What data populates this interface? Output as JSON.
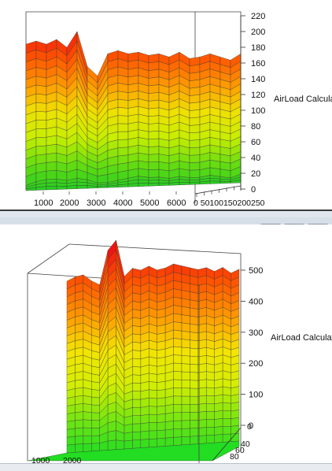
{
  "window_controls": {
    "minimize_icon": "minimize-icon",
    "restore_icon": "restore-icon",
    "close_icon": "close-icon"
  },
  "chart_data": [
    {
      "type": "surface",
      "zlabel": "AirLoad Calculated",
      "zlim": [
        0,
        220
      ],
      "z_ticks": [
        "0",
        "20",
        "40",
        "60",
        "80",
        "100",
        "120",
        "140",
        "160",
        "180",
        "200",
        "220"
      ],
      "x_ticks": [
        "1000",
        "2000",
        "3000",
        "4000",
        "5000",
        "6000"
      ],
      "y_ticks": [
        "0",
        "50",
        "100",
        "150",
        "200",
        "250"
      ],
      "y_tick_text": "0 50100150200250",
      "colormap": [
        "#22cc22",
        "#66dd11",
        "#c8ee00",
        "#f0e000",
        "#ff9900",
        "#ff5500",
        "#ee1111"
      ],
      "surface_heights": [
        0.92,
        0.94,
        0.92,
        0.95,
        0.9,
        1.0,
        0.78,
        0.72,
        0.86,
        0.88,
        0.86,
        0.87,
        0.85,
        0.86,
        0.84,
        0.87,
        0.83,
        0.84,
        0.86,
        0.84,
        0.82,
        0.86
      ],
      "knee_heights": [
        0.03,
        0.05,
        0.06,
        0.06,
        0.05,
        0.06,
        0.05,
        0.03,
        0.03,
        0.04,
        0.05,
        0.06,
        0.05,
        0.05,
        0.04,
        0.05,
        0.04,
        0.04,
        0.05,
        0.04,
        0.03,
        0.05
      ]
    },
    {
      "type": "surface",
      "zlabel": "AirLoad Calculated",
      "zlim": [
        0,
        500
      ],
      "z_ticks": [
        "0",
        "100",
        "200",
        "300",
        "400",
        "500"
      ],
      "x_ticks": [
        "1000",
        "2000"
      ],
      "y_ticks": [
        "0",
        "40",
        "60",
        "80"
      ],
      "colormap": [
        "#22dd22",
        "#77e611",
        "#d4ee00",
        "#f4e400",
        "#ff9900",
        "#ff5500",
        "#ee1111"
      ],
      "surface_heights": [
        0.8,
        0.82,
        0.83,
        0.8,
        0.78,
        0.95,
        1.0,
        0.82,
        0.86,
        0.85,
        0.87,
        0.85,
        0.86,
        0.88,
        0.87,
        0.86,
        0.85,
        0.86,
        0.84,
        0.86,
        0.83,
        0.85
      ]
    }
  ]
}
